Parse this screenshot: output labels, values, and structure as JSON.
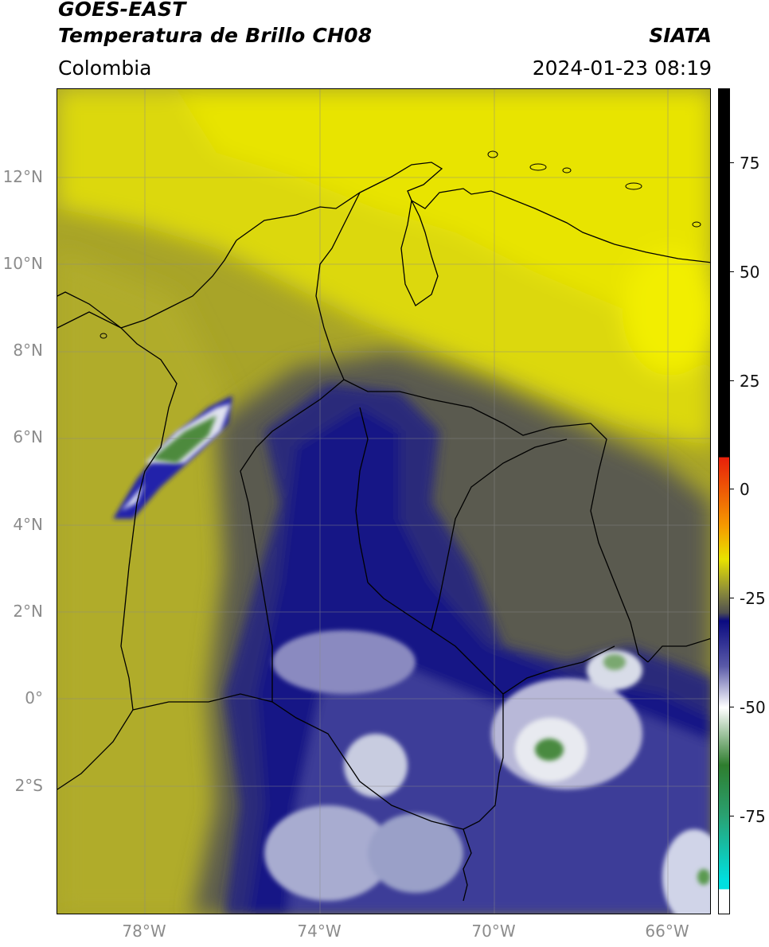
{
  "header": {
    "satellite": "GOES-EAST",
    "product": "Temperatura de Brillo CH08",
    "brand": "SIATA",
    "region": "Colombia",
    "datetime": "2024-01-23 08:19"
  },
  "axes": {
    "longitude_ticks": [
      "78°W",
      "74°W",
      "70°W",
      "66°W"
    ],
    "latitude_ticks": [
      "12°N",
      "10°N",
      "8°N",
      "6°N",
      "4°N",
      "2°N",
      "0°",
      "2°S"
    ]
  },
  "colorbar": {
    "ticks": [
      "75",
      "50",
      "25",
      "0",
      "-25",
      "-50",
      "-75"
    ],
    "colors": {
      "black": "#000000",
      "red": "#e8200a",
      "orange": "#f59a00",
      "yellow": "#e8e200",
      "olive": "#8a8a3a",
      "navy": "#0a0a80",
      "white": "#ffffff",
      "green": "#2e7d2e",
      "cyan": "#00e0e0"
    }
  }
}
